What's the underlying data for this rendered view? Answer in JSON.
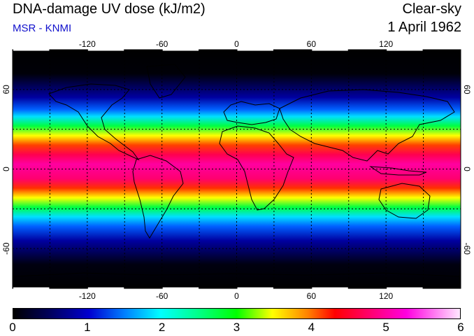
{
  "header": {
    "title": "DNA-damage UV dose (kJ/m2)",
    "source": "MSR - KNMI",
    "condition": "Clear-sky",
    "date": "1 April 1962"
  },
  "map": {
    "lon_ticks": [
      "-120",
      "-60",
      "0",
      "60",
      "120"
    ],
    "lat_ticks": [
      "60",
      "0",
      "-60"
    ],
    "lon_range": [
      -180,
      180
    ],
    "lat_range": [
      -90,
      90
    ],
    "gridlines": "dashed every 30 degrees",
    "coastlines": true
  },
  "colorbar": {
    "labels": [
      "0",
      "1",
      "2",
      "3",
      "4",
      "5",
      "6"
    ],
    "range": [
      0,
      6
    ],
    "colors": [
      "#000000",
      "#0000b0",
      "#0080ff",
      "#00ffff",
      "#00ff00",
      "#ffff00",
      "#ff8000",
      "#ff0000",
      "#ff0080",
      "#ff00ff",
      "#ffe0ff"
    ]
  }
}
